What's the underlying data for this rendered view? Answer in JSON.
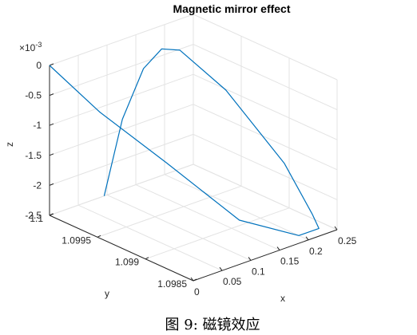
{
  "chart_data": {
    "type": "line3d",
    "title": "Magnetic mirror effect",
    "xlabel": "x",
    "ylabel": "y",
    "zlabel": "z",
    "z_multiplier": "×10",
    "z_multiplier_exp": "-3",
    "xlim": [
      0,
      0.25
    ],
    "ylim": [
      1.0985,
      1.1
    ],
    "zlim": [
      -2.5,
      0
    ],
    "x_ticks": [
      {
        "value": 0,
        "label": "0"
      },
      {
        "value": 0.05,
        "label": "0.05"
      },
      {
        "value": 0.1,
        "label": "0.1"
      },
      {
        "value": 0.15,
        "label": "0.15"
      },
      {
        "value": 0.2,
        "label": "0.2"
      },
      {
        "value": 0.25,
        "label": "0.25"
      }
    ],
    "y_ticks": [
      {
        "value": 1.1,
        "label": "1.1"
      },
      {
        "value": 1.0995,
        "label": "1.0995"
      },
      {
        "value": 1.099,
        "label": "1.099"
      },
      {
        "value": 1.0985,
        "label": "1.0985"
      }
    ],
    "z_ticks": [
      {
        "value": 0,
        "label": "0"
      },
      {
        "value": -0.5,
        "label": "-0.5"
      },
      {
        "value": -1,
        "label": "-1"
      },
      {
        "value": -1.5,
        "label": "-1.5"
      },
      {
        "value": -2,
        "label": "-2"
      },
      {
        "value": -2.5,
        "label": "-2.5"
      }
    ],
    "grid": true,
    "line_color": "#0072BD",
    "series": [
      {
        "points": [
          [
            0.0,
            1.1,
            0.0
          ],
          [
            0.02,
            1.0996,
            -0.55
          ],
          [
            0.07,
            1.0992,
            -1.28
          ],
          [
            0.13,
            1.0988,
            -2.15
          ],
          [
            0.2,
            1.0986,
            -2.5
          ],
          [
            0.235,
            1.0986,
            -2.5
          ],
          [
            0.24,
            1.0987,
            -2.35
          ],
          [
            0.225,
            1.0989,
            -1.6
          ],
          [
            0.19,
            1.0993,
            -0.55
          ],
          [
            0.16,
            1.0996,
            0.0
          ],
          [
            0.145,
            1.0997,
            0.0
          ],
          [
            0.13,
            1.0998,
            -0.35
          ],
          [
            0.11,
            1.0999,
            -1.2
          ],
          [
            0.095,
            1.1,
            -2.5
          ]
        ]
      }
    ]
  },
  "caption": "图 9: 磁镜效应"
}
